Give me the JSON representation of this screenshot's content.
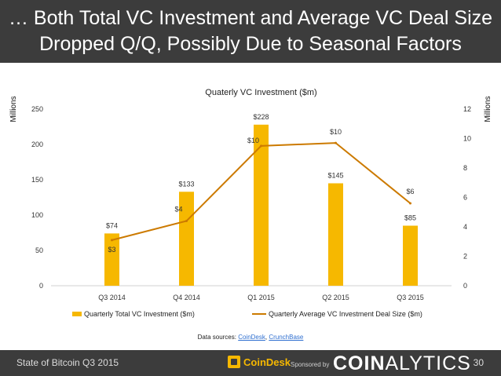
{
  "header": {
    "title_line1": "… Both Total VC Investment and Average VC Deal Size",
    "title_line2": "Dropped Q/Q, Possibly Due to Seasonal Factors"
  },
  "chart_data": {
    "type": "bar",
    "title": "Quaterly VC Investment ($m)",
    "categories": [
      "Q3 2014",
      "Q4 2014",
      "Q1 2015",
      "Q2 2015",
      "Q3 2015"
    ],
    "series": [
      {
        "name": "Quarterly Total VC Investment ($m)",
        "kind": "bar",
        "axis": "left",
        "color": "#f6b800",
        "values": [
          74,
          133,
          228,
          145,
          85
        ],
        "labels": [
          "$74",
          "$133",
          "$228",
          "$145",
          "$85"
        ]
      },
      {
        "name": "Quarterly Average VC Investment Deal Size ($m)",
        "kind": "line",
        "axis": "right",
        "color": "#cc7a00",
        "values": [
          3.1,
          4.4,
          9.5,
          9.7,
          5.6
        ],
        "labels": [
          "$3",
          "$4",
          "$10",
          "$10",
          "$6"
        ]
      }
    ],
    "ylabel_left": "Millions",
    "ylabel_right": "Millions",
    "ylim_left": [
      0,
      250
    ],
    "yticks_left": [
      0,
      50,
      100,
      150,
      200,
      250
    ],
    "ylim_right": [
      0,
      12
    ],
    "yticks_right": [
      0,
      2,
      4,
      6,
      8,
      10,
      12
    ],
    "grid": false,
    "legend_position": "bottom"
  },
  "sources": {
    "prefix": "Data sources: ",
    "link1": "CoinDesk",
    "sep": ", ",
    "link2": "CrunchBase"
  },
  "footer": {
    "left_text": "State of Bitcoin Q3 2015",
    "logo_text": "CoinDesk",
    "sponsored": "Sponsored by",
    "brand_bold": "COIN",
    "brand_light": "ALYTICS",
    "page_number": "30"
  }
}
